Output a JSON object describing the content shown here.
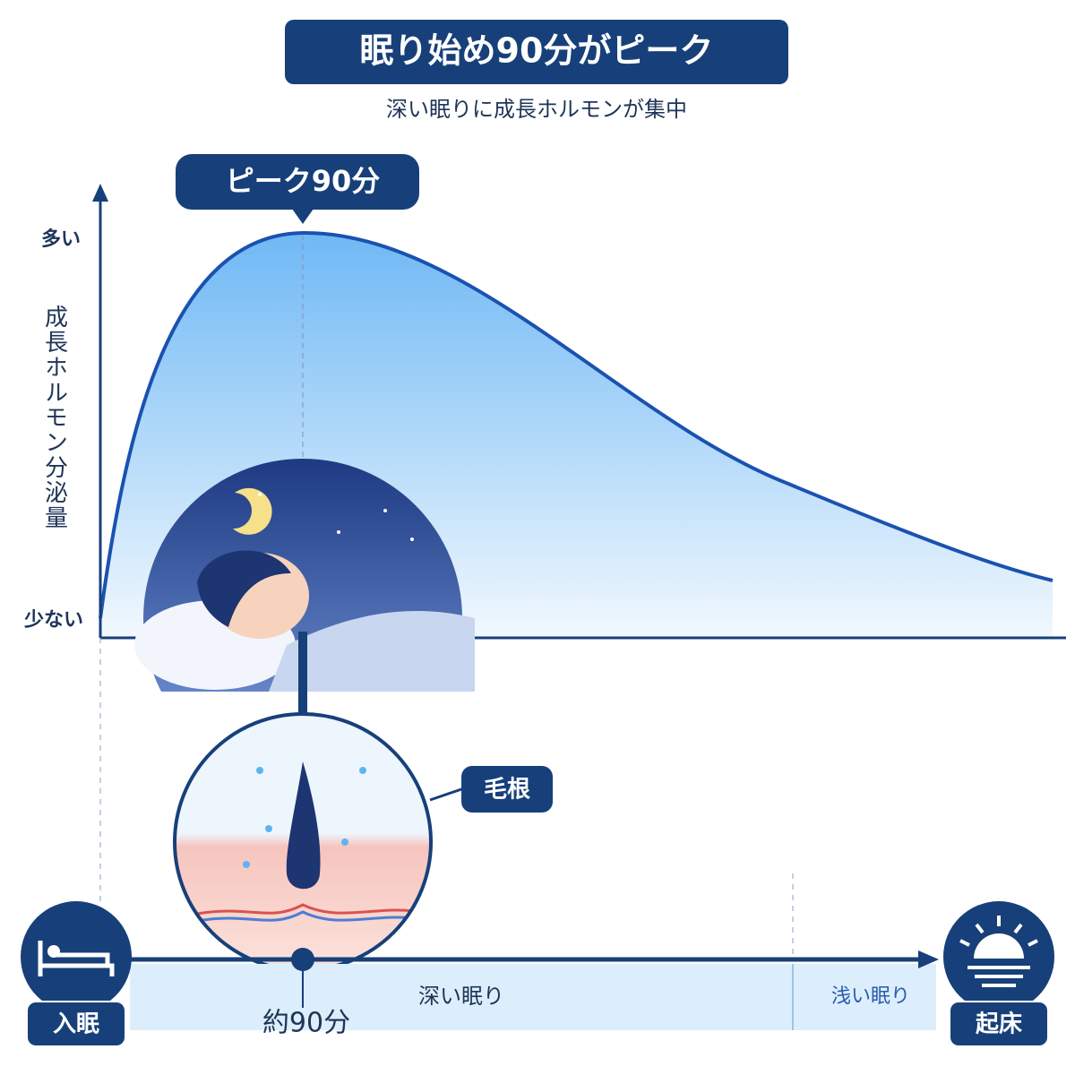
{
  "header": {
    "title": "眠り始め90分がピーク",
    "subtitle": "深い眠りに成長ホルモンが集中"
  },
  "graph": {
    "peak_label": "ピーク90分",
    "y_high": "多い",
    "y_low": "少ない",
    "y_axis_label": "成長ホルモン分泌量",
    "callout": "毛根"
  },
  "timeline": {
    "start": "入眠",
    "end": "起床",
    "deep": "深い眠り",
    "light": "浅い眠り",
    "marker": "約90分"
  }
}
